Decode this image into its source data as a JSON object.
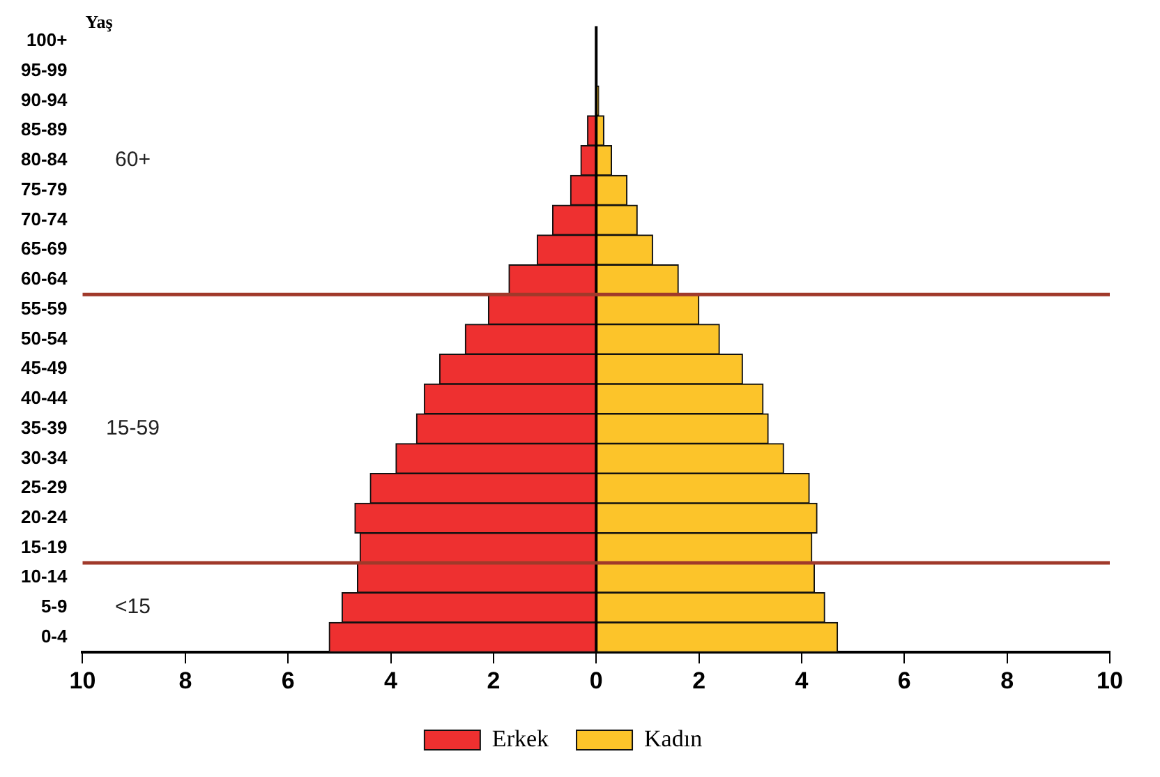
{
  "chart_data": {
    "type": "bar",
    "orientation": "horizontal",
    "stacked": true,
    "ylabel": "Yaş",
    "categories": [
      "100+",
      "95-99",
      "90-94",
      "85-89",
      "80-84",
      "75-79",
      "70-74",
      "65-69",
      "60-64",
      "55-59",
      "50-54",
      "45-49",
      "40-44",
      "35-39",
      "30-34",
      "25-29",
      "20-24",
      "15-19",
      "10-14",
      "5-9",
      "0-4"
    ],
    "series": [
      {
        "name": "Erkek",
        "color": "#ee3030",
        "values": [
          0,
          0,
          0,
          -0.17,
          -0.3,
          -0.5,
          -0.85,
          -1.15,
          -1.7,
          -2.1,
          -2.55,
          -3.05,
          -3.35,
          -3.5,
          -3.9,
          -4.4,
          -4.7,
          -4.6,
          -4.65,
          -4.95,
          -5.2
        ]
      },
      {
        "name": "Kadın",
        "color": "#fcc42a",
        "values": [
          0,
          0,
          0.05,
          0.15,
          0.3,
          0.6,
          0.8,
          1.1,
          1.6,
          2.0,
          2.4,
          2.85,
          3.25,
          3.35,
          3.65,
          4.15,
          4.3,
          4.2,
          4.25,
          4.45,
          4.7
        ]
      }
    ],
    "xlim": [
      -10,
      10
    ],
    "xticks": [
      {
        "value": -10,
        "label": "10"
      },
      {
        "value": -8,
        "label": "8"
      },
      {
        "value": -6,
        "label": "6"
      },
      {
        "value": -4,
        "label": "4"
      },
      {
        "value": -2,
        "label": "2"
      },
      0,
      2,
      4,
      6,
      8,
      10
    ],
    "ref_lines": [
      {
        "axis": "y",
        "value": "60-64",
        "color": "#a0392a"
      },
      {
        "axis": "y",
        "value": "15-19",
        "color": "#a0392a"
      }
    ],
    "annotations": [
      "60+",
      "15-59",
      "<15"
    ],
    "legend": "bottom"
  }
}
